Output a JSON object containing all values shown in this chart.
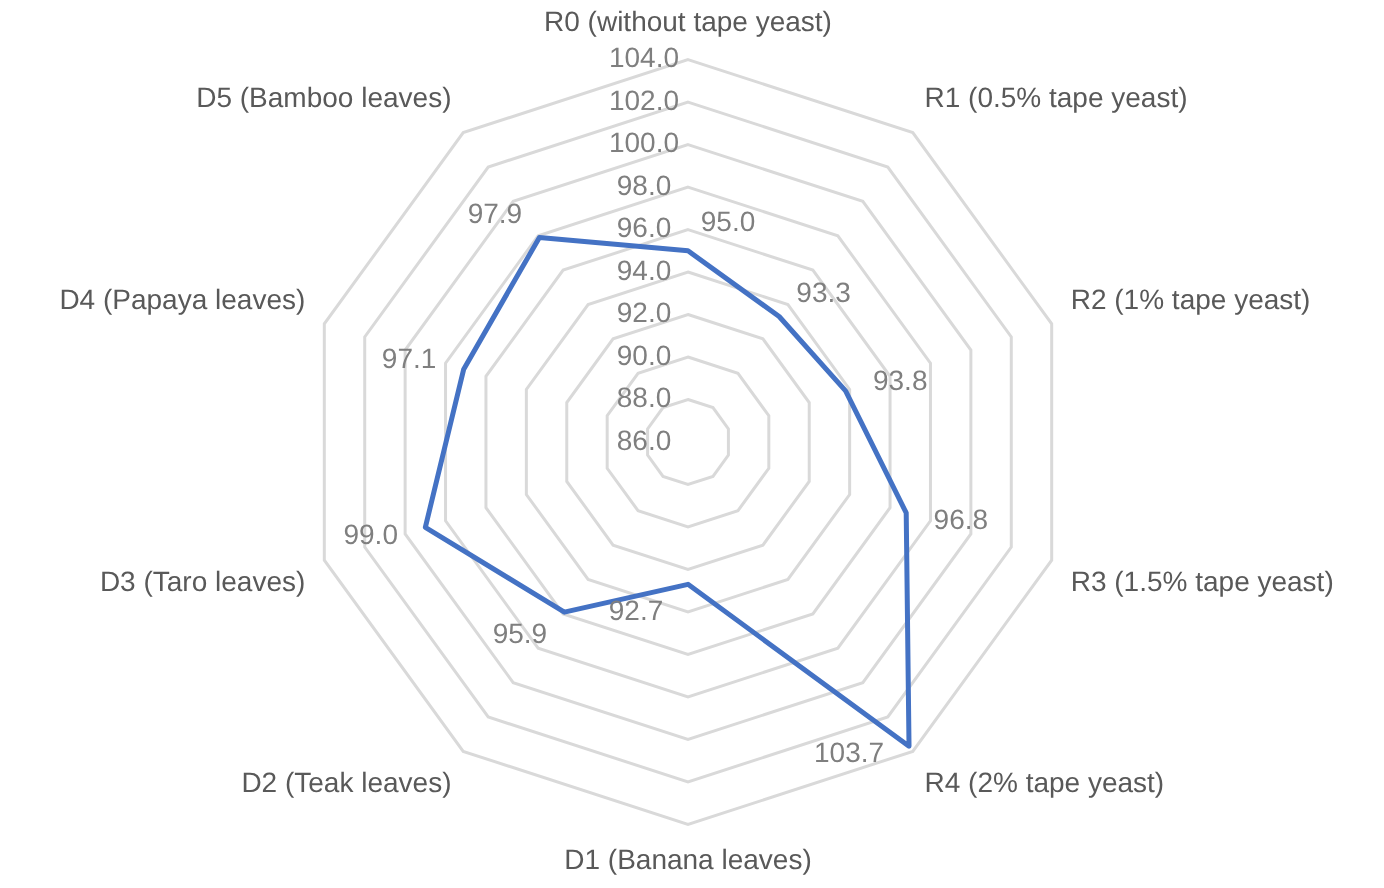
{
  "chart_data": {
    "type": "radar",
    "categories": [
      "R0 (without tape yeast)",
      "R1 (0.5% tape yeast)",
      "R2 (1% tape yeast)",
      "R3 (1.5% tape yeast)",
      "R4 (2% tape yeast)",
      "D1 (Banana leaves)",
      "D2 (Teak leaves)",
      "D3 (Taro leaves)",
      "D4 (Papaya leaves)",
      "D5 (Bamboo leaves)"
    ],
    "series": [
      {
        "color": "#4472c4",
        "values": [
          95.0,
          93.3,
          93.8,
          96.8,
          103.7,
          92.7,
          95.9,
          99.0,
          97.1,
          97.9
        ],
        "value_labels": [
          "95.0",
          "93.3",
          "93.8",
          "96.8",
          "103.7",
          "92.7",
          "95.9",
          "99.0",
          "97.1",
          "97.9"
        ]
      }
    ],
    "ylim": [
      86,
      104
    ],
    "yticks": [
      {
        "value": 86,
        "label": "86.0"
      },
      {
        "value": 88,
        "label": "88.0"
      },
      {
        "value": 90,
        "label": "90.0"
      },
      {
        "value": 92,
        "label": "92.0"
      },
      {
        "value": 94,
        "label": "94.0"
      },
      {
        "value": 96,
        "label": "96.0"
      },
      {
        "value": 98,
        "label": "98.0"
      },
      {
        "value": 100,
        "label": "100.0"
      },
      {
        "value": 102,
        "label": "102.0"
      },
      {
        "value": 104,
        "label": "104.0"
      }
    ],
    "grid": true,
    "legend": false,
    "marker": "none",
    "line_style": "solid"
  }
}
